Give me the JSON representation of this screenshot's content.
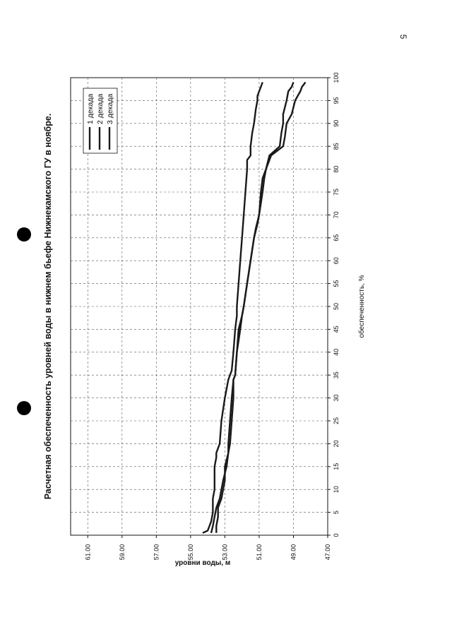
{
  "page": {
    "number": "5"
  },
  "chart_data": {
    "type": "line",
    "title": "Расчетная обеспеченность уровней воды в нижнем бьефе Нижнекамского ГУ в ноябре.",
    "xlabel": "обеспеченность, %",
    "ylabel": "уровни воды, м",
    "xlim": [
      0,
      100
    ],
    "ylim": [
      47,
      62
    ],
    "x_ticks": [
      "0",
      "5",
      "10",
      "15",
      "20",
      "25",
      "30",
      "35",
      "40",
      "45",
      "50",
      "55",
      "60",
      "65",
      "70",
      "75",
      "80",
      "85",
      "90",
      "95",
      "100"
    ],
    "y_ticks": [
      "47.00",
      "49.00",
      "51.00",
      "53.00",
      "55.00",
      "57.00",
      "59.00",
      "61.00"
    ],
    "grid": true,
    "legend_position": "top-right",
    "series": [
      {
        "name": "1 декада",
        "color": "#1a1a1a",
        "x": [
          0.5,
          1,
          3,
          5,
          8,
          10,
          12,
          15,
          17,
          18,
          20,
          25,
          30,
          34,
          36,
          40,
          45,
          48,
          50,
          55,
          60,
          65,
          70,
          75,
          80,
          82,
          83,
          85,
          88,
          90,
          93,
          95,
          96,
          97,
          98,
          99
        ],
        "y": [
          54.3,
          54.0,
          53.8,
          53.7,
          53.7,
          53.6,
          53.6,
          53.6,
          53.5,
          53.5,
          53.3,
          53.2,
          53.0,
          52.8,
          52.6,
          52.5,
          52.4,
          52.3,
          52.3,
          52.2,
          52.1,
          52.0,
          51.9,
          51.8,
          51.7,
          51.7,
          51.5,
          51.5,
          51.4,
          51.3,
          51.2,
          51.1,
          51.1,
          51.0,
          50.9,
          50.8
        ]
      },
      {
        "name": "2 декада",
        "color": "#1a1a1a",
        "x": [
          0.5,
          2,
          4,
          6,
          8,
          10,
          12,
          15,
          18,
          20,
          25,
          30,
          34,
          35,
          40,
          45,
          48,
          50,
          55,
          60,
          65,
          67,
          70,
          75,
          78,
          80,
          83,
          85,
          88,
          90,
          92,
          95,
          97,
          98,
          99
        ],
        "y": [
          53.5,
          53.5,
          53.4,
          53.4,
          53.2,
          53.1,
          53.0,
          53.0,
          52.8,
          52.8,
          52.7,
          52.6,
          52.5,
          52.4,
          52.3,
          52.2,
          52.0,
          51.9,
          51.7,
          51.5,
          51.3,
          51.2,
          51.0,
          50.8,
          50.7,
          50.6,
          50.4,
          49.8,
          49.7,
          49.6,
          49.6,
          49.4,
          49.3,
          49.1,
          49.0
        ]
      },
      {
        "name": "3 декада",
        "color": "#1a1a1a",
        "x": [
          0.5,
          2,
          4,
          6,
          8,
          10,
          12,
          15,
          18,
          20,
          25,
          30,
          34,
          35,
          40,
          45,
          48,
          50,
          55,
          60,
          65,
          68,
          70,
          75,
          78,
          80,
          83,
          85,
          87,
          90,
          92,
          95,
          97,
          98,
          99
        ],
        "y": [
          53.8,
          53.7,
          53.6,
          53.5,
          53.3,
          53.2,
          53.1,
          52.9,
          52.8,
          52.7,
          52.6,
          52.5,
          52.5,
          52.4,
          52.3,
          52.1,
          52.0,
          51.9,
          51.7,
          51.5,
          51.3,
          51.1,
          51.0,
          50.9,
          50.8,
          50.6,
          50.3,
          49.6,
          49.5,
          49.4,
          49.1,
          48.9,
          48.6,
          48.5,
          48.3
        ]
      }
    ]
  }
}
